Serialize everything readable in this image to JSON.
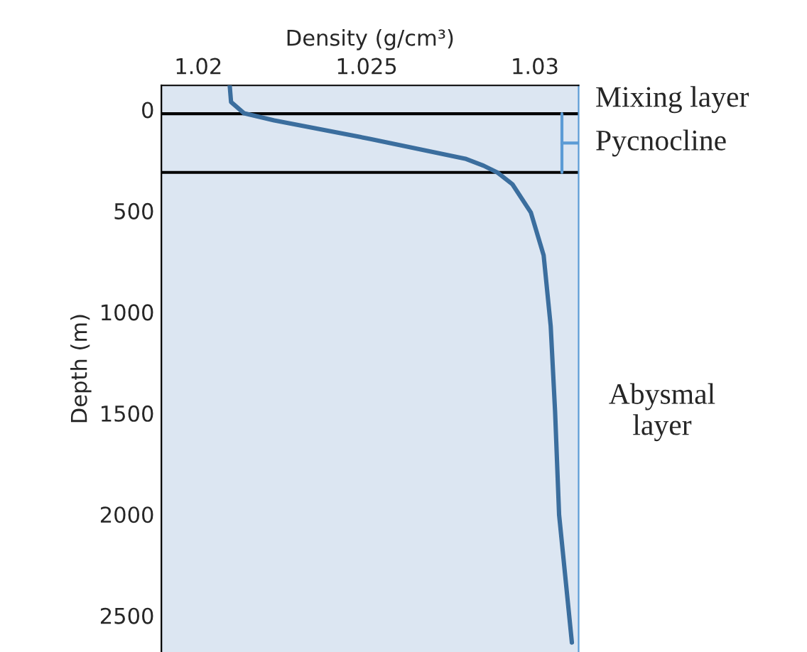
{
  "chart_data": {
    "type": "line",
    "xlabel": "Density (g/cm³)",
    "ylabel": "Depth (m)",
    "xlim": [
      1.0189,
      1.0313
    ],
    "xticks": [
      1.02,
      1.025,
      1.03
    ],
    "ylim": [
      2680,
      -120
    ],
    "yticks": [
      0,
      500,
      1000,
      1500,
      2000,
      2500
    ],
    "series": [
      {
        "color": "#3b6e9e",
        "x": [
          1.02093,
          1.02097,
          1.02136,
          1.02225,
          1.02509,
          1.02793,
          1.02848,
          1.0289,
          1.02933,
          1.02988,
          1.03026,
          1.03047,
          1.0306,
          1.03072,
          1.0311
        ],
        "values": [
          -120,
          -38,
          18,
          53,
          144,
          242,
          277,
          312,
          368,
          508,
          719,
          1069,
          1490,
          2002,
          2633
        ]
      }
    ],
    "ref_lines": [
      {
        "axis": "y",
        "value": 20,
        "color": "#000000"
      },
      {
        "axis": "y",
        "value": 310,
        "color": "#000000"
      }
    ],
    "bands": [
      {
        "axis": "y",
        "from": -120,
        "to": 20,
        "label": "Mixing layer",
        "color": "#dce6f2"
      },
      {
        "axis": "y",
        "from": 20,
        "to": 310,
        "label": "Pycnocline",
        "color": "#dce6f2"
      },
      {
        "axis": "y",
        "from": 310,
        "to": 2680,
        "label": "Abysmal\nlayer",
        "color": "#dce6f2"
      }
    ],
    "grid": false,
    "legend": false
  }
}
